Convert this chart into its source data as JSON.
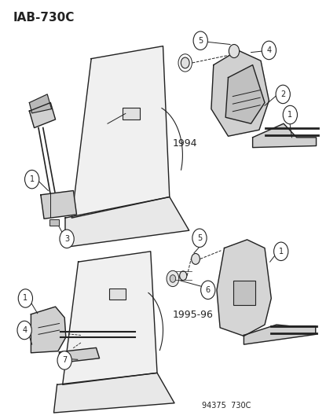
{
  "title": "IAB-730C",
  "bg_color": "#ffffff",
  "line_color": "#222222",
  "year1": "1994",
  "year2": "1995-96",
  "footer": "94375  730C"
}
